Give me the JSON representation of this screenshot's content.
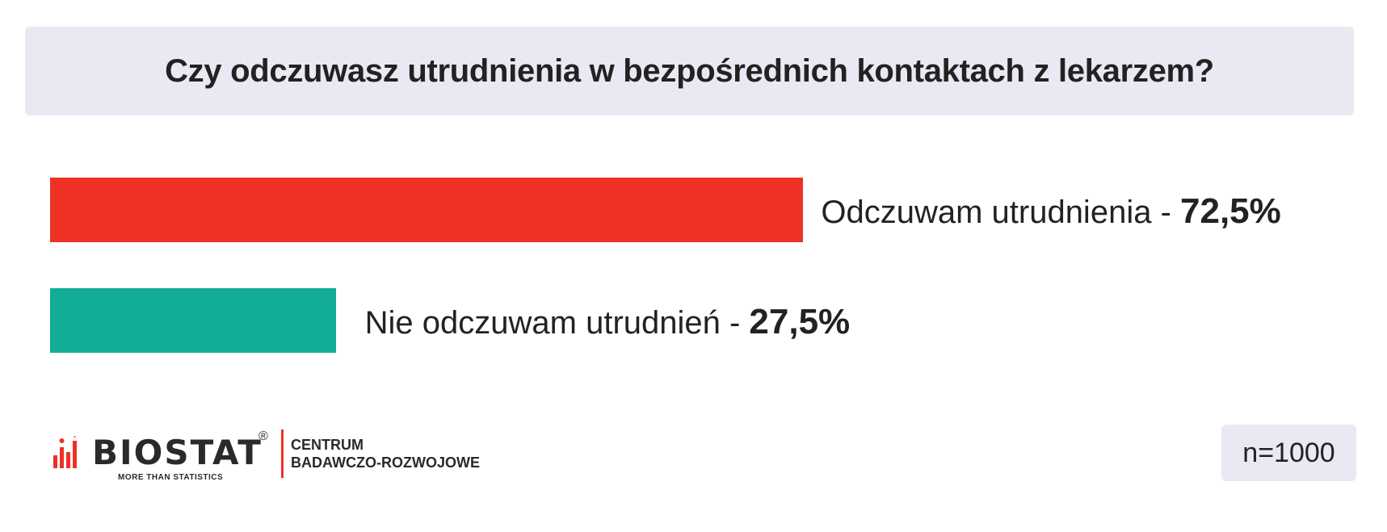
{
  "chart_data": {
    "type": "bar",
    "orientation": "horizontal",
    "title": "Czy odczuwasz utrudnienia w bezpośrednich kontaktach z lekarzem?",
    "categories": [
      "Odczuwam utrudnienia",
      "Nie odczuwam utrudnień"
    ],
    "values": [
      72.5,
      27.5
    ],
    "value_labels": [
      "72,5%",
      "27,5%"
    ],
    "separator": " - ",
    "colors": [
      "#ee3124",
      "#12ad95"
    ],
    "xlim": [
      0,
      100
    ],
    "grid": false,
    "legend": "none"
  },
  "footer": {
    "logo_word": "BIOSTAT",
    "logo_reg": "®",
    "logo_tagline": "MORE THAN STATISTICS",
    "logo_center_line1": "CENTRUM",
    "logo_center_line2": "BADAWCZO-ROZWOJOWE",
    "sample_size": "n=1000"
  }
}
